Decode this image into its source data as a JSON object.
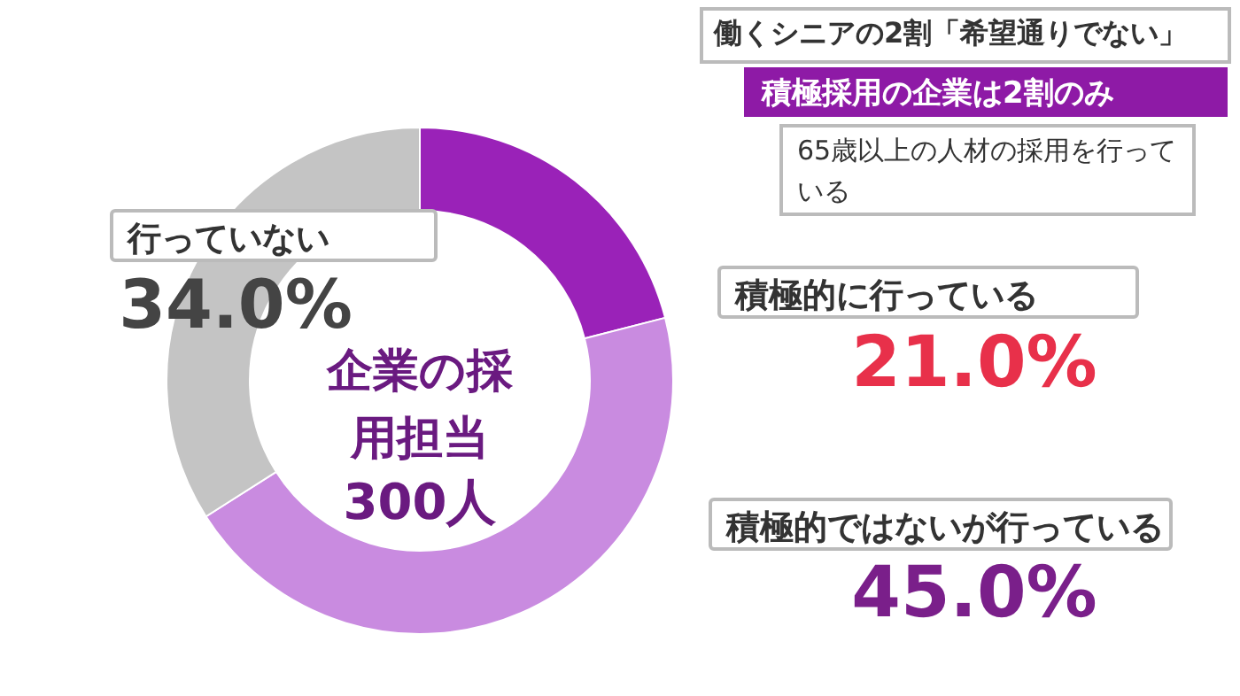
{
  "chart_data": {
    "type": "donut",
    "title": "働くシニアの2割「希望通りでない」",
    "subtitle": "積極採用の企業は2割のみ",
    "categories": [
      "積極的に行っている",
      "積極的ではないが行っている",
      "行っていない"
    ],
    "values": [
      21,
      45,
      34
    ],
    "colors": [
      "#9a22b8",
      "#c98be0",
      "#c4c4c4"
    ],
    "value_labels": [
      "21.0%",
      "45.0%",
      "34.0%"
    ],
    "annotations": [
      "65歳以上の人材の採用を行っている",
      "企業の採用担当",
      "300人"
    ]
  }
}
